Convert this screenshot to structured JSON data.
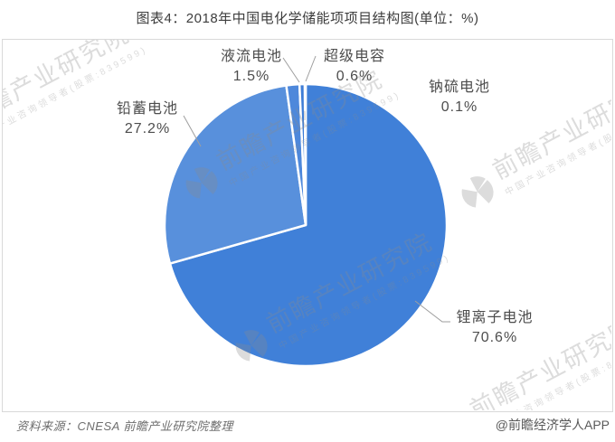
{
  "title": "图表4：2018年中国电化学储能项项目结构图(单位：%)",
  "chart_data": {
    "type": "pie",
    "title": "图表4：2018年中国电化学储能项项目结构图",
    "unit": "%",
    "start_angle_deg": 0,
    "direction": "clockwise",
    "legend_position": "none",
    "segments": [
      {
        "label": "锂离子电池",
        "value": 70.6,
        "pct_label": "70.6%",
        "color": "#4080d8"
      },
      {
        "label": "铅蓄电池",
        "value": 27.2,
        "pct_label": "27.2%",
        "color": "#5890dc"
      },
      {
        "label": "液流电池",
        "value": 1.5,
        "pct_label": "1.5%",
        "color": "#4e88db"
      },
      {
        "label": "超级电容",
        "value": 0.6,
        "pct_label": "0.6%",
        "color": "#3d7cd6"
      },
      {
        "label": "钠硫电池",
        "value": 0.1,
        "pct_label": "0.1%",
        "color": "#6fa0e2"
      }
    ]
  },
  "watermark": {
    "brand": "前瞻产业研究院",
    "tagline": "中国产业咨询领导者(股票:839599)"
  },
  "footer": {
    "source": "资料来源：CNESA 前瞻产业研究院整理",
    "credit": "@前瞻经济学人APP"
  },
  "colors": {
    "plot_border": "#d9d9d9",
    "label_text": "#4d4d4d",
    "leader_line": "#9e9e9e",
    "title_text": "#3d3d3d"
  }
}
